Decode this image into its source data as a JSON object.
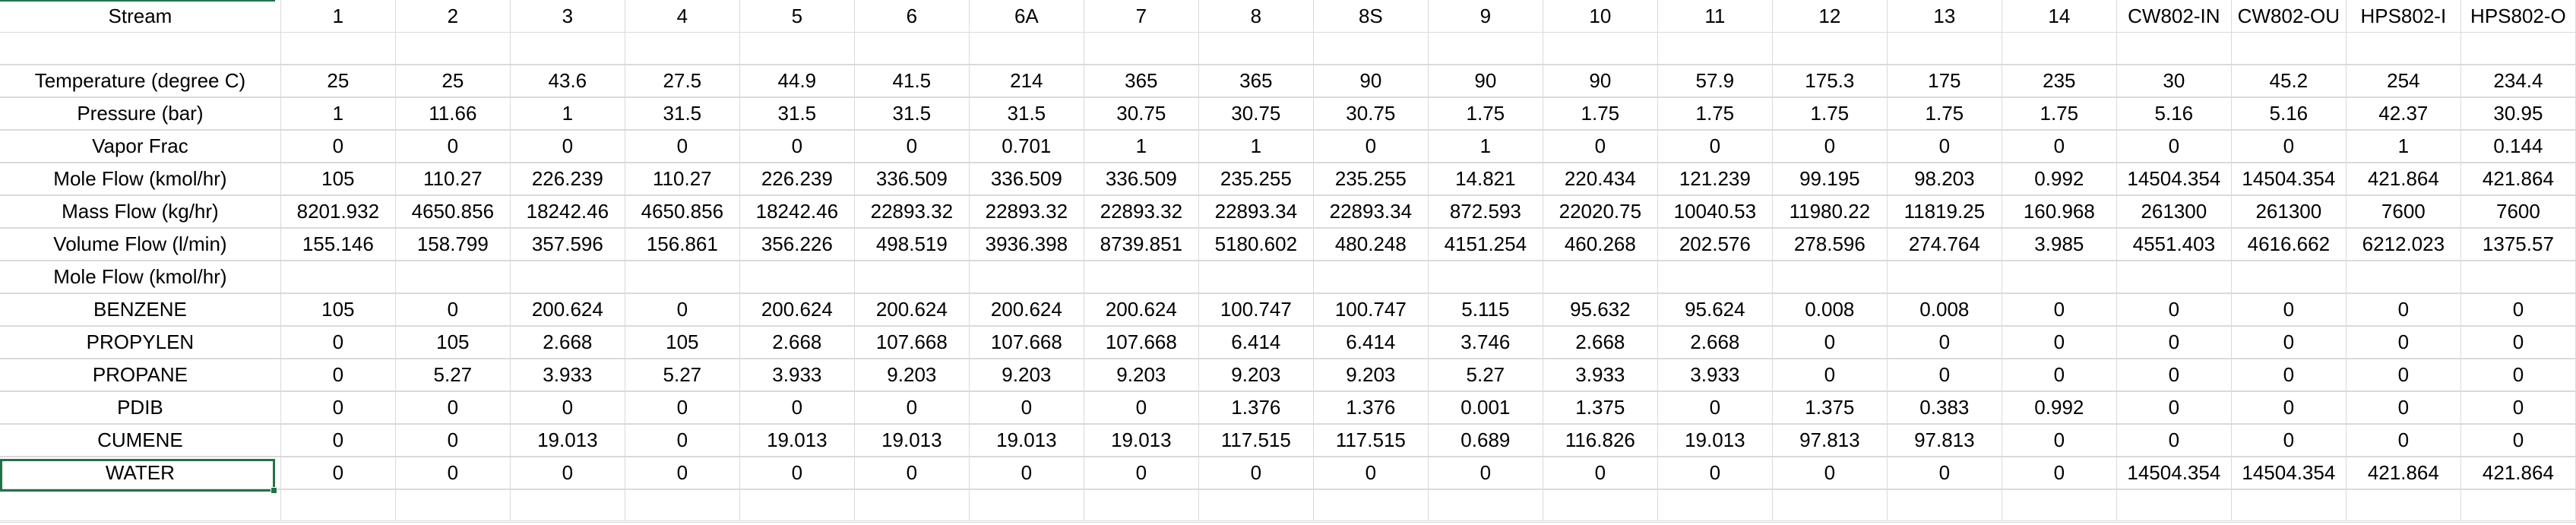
{
  "columns": [
    "Stream",
    "1",
    "2",
    "3",
    "4",
    "5",
    "6",
    "6A",
    "7",
    "8",
    "8S",
    "9",
    "10",
    "11",
    "12",
    "13",
    "14",
    "CW802-IN",
    "CW802-OU",
    "HPS802-I",
    "HPS802-O"
  ],
  "rows": [
    [
      "Temperature (degree C)",
      "25",
      "25",
      "43.6",
      "27.5",
      "44.9",
      "41.5",
      "214",
      "365",
      "365",
      "90",
      "90",
      "90",
      "57.9",
      "175.3",
      "175",
      "235",
      "30",
      "45.2",
      "254",
      "234.4"
    ],
    [
      "Pressure (bar)",
      "1",
      "11.66",
      "1",
      "31.5",
      "31.5",
      "31.5",
      "31.5",
      "30.75",
      "30.75",
      "30.75",
      "1.75",
      "1.75",
      "1.75",
      "1.75",
      "1.75",
      "1.75",
      "5.16",
      "5.16",
      "42.37",
      "30.95"
    ],
    [
      "Vapor Frac",
      "0",
      "0",
      "0",
      "0",
      "0",
      "0",
      "0.701",
      "1",
      "1",
      "0",
      "1",
      "0",
      "0",
      "0",
      "0",
      "0",
      "0",
      "0",
      "1",
      "0.144"
    ],
    [
      "Mole Flow (kmol/hr)",
      "105",
      "110.27",
      "226.239",
      "110.27",
      "226.239",
      "336.509",
      "336.509",
      "336.509",
      "235.255",
      "235.255",
      "14.821",
      "220.434",
      "121.239",
      "99.195",
      "98.203",
      "0.992",
      "14504.354",
      "14504.354",
      "421.864",
      "421.864"
    ],
    [
      "Mass Flow (kg/hr)",
      "8201.932",
      "4650.856",
      "18242.46",
      "4650.856",
      "18242.46",
      "22893.32",
      "22893.32",
      "22893.32",
      "22893.34",
      "22893.34",
      "872.593",
      "22020.75",
      "10040.53",
      "11980.22",
      "11819.25",
      "160.968",
      "261300",
      "261300",
      "7600",
      "7600"
    ],
    [
      "Volume Flow (l/min)",
      "155.146",
      "158.799",
      "357.596",
      "156.861",
      "356.226",
      "498.519",
      "3936.398",
      "8739.851",
      "5180.602",
      "480.248",
      "4151.254",
      "460.268",
      "202.576",
      "278.596",
      "274.764",
      "3.985",
      "4551.403",
      "4616.662",
      "6212.023",
      "1375.57"
    ],
    [
      "Mole Flow (kmol/hr)",
      "",
      "",
      "",
      "",
      "",
      "",
      "",
      "",
      "",
      "",
      "",
      "",
      "",
      "",
      "",
      "",
      "",
      "",
      "",
      ""
    ],
    [
      "BENZENE",
      "105",
      "0",
      "200.624",
      "0",
      "200.624",
      "200.624",
      "200.624",
      "200.624",
      "100.747",
      "100.747",
      "5.115",
      "95.632",
      "95.624",
      "0.008",
      "0.008",
      "0",
      "0",
      "0",
      "0",
      "0"
    ],
    [
      "PROPYLEN",
      "0",
      "105",
      "2.668",
      "105",
      "2.668",
      "107.668",
      "107.668",
      "107.668",
      "6.414",
      "6.414",
      "3.746",
      "2.668",
      "2.668",
      "0",
      "0",
      "0",
      "0",
      "0",
      "0",
      "0"
    ],
    [
      "PROPANE",
      "0",
      "5.27",
      "3.933",
      "5.27",
      "3.933",
      "9.203",
      "9.203",
      "9.203",
      "9.203",
      "9.203",
      "5.27",
      "3.933",
      "3.933",
      "0",
      "0",
      "0",
      "0",
      "0",
      "0",
      "0"
    ],
    [
      "PDIB",
      "0",
      "0",
      "0",
      "0",
      "0",
      "0",
      "0",
      "0",
      "1.376",
      "1.376",
      "0.001",
      "1.375",
      "0",
      "1.375",
      "0.383",
      "0.992",
      "0",
      "0",
      "0",
      "0"
    ],
    [
      "CUMENE",
      "0",
      "0",
      "19.013",
      "0",
      "19.013",
      "19.013",
      "19.013",
      "19.013",
      "117.515",
      "117.515",
      "0.689",
      "116.826",
      "19.013",
      "97.813",
      "97.813",
      "0",
      "0",
      "0",
      "0",
      "0"
    ],
    [
      "WATER",
      "0",
      "0",
      "0",
      "0",
      "0",
      "0",
      "0",
      "0",
      "0",
      "0",
      "0",
      "0",
      "0",
      "0",
      "0",
      "0",
      "14504.354",
      "14504.354",
      "421.864",
      "421.864"
    ]
  ],
  "accent_color": "#217346",
  "gridline_color": "#dadada"
}
